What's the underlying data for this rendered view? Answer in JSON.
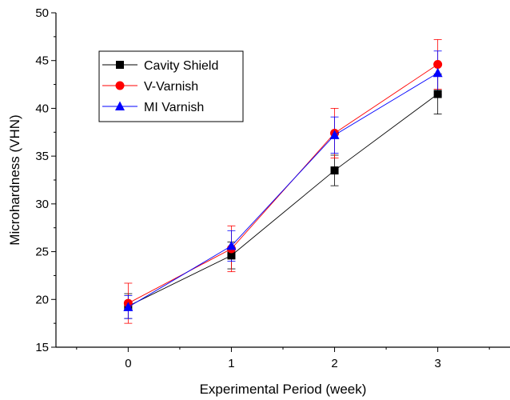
{
  "chart_data": {
    "type": "line",
    "title": "",
    "xlabel": "Experimental Period  (week)",
    "ylabel": "Microhardness (VHN)",
    "x": [
      0,
      1,
      2,
      3
    ],
    "xlim": [
      -0.7,
      3.7
    ],
    "ylim": [
      15,
      50
    ],
    "xticks": [
      "0",
      "1",
      "2",
      "3"
    ],
    "yticks": [
      "15",
      "20",
      "25",
      "30",
      "35",
      "40",
      "45",
      "50"
    ],
    "grid": false,
    "legend_position": "top-left",
    "series": [
      {
        "name": "Cavity Shield",
        "color": "#000000",
        "marker": "square",
        "values": [
          19.3,
          24.6,
          33.5,
          41.5
        ],
        "errors": [
          1.3,
          1.4,
          1.6,
          2.1
        ]
      },
      {
        "name": "V-Varnish",
        "color": "#ff0000",
        "marker": "circle",
        "values": [
          19.6,
          25.3,
          37.4,
          44.6
        ],
        "errors": [
          2.1,
          2.4,
          2.6,
          2.6
        ]
      },
      {
        "name": "MI Varnish",
        "color": "#0000ff",
        "marker": "triangle",
        "values": [
          19.2,
          25.6,
          37.2,
          43.7
        ],
        "errors": [
          1.2,
          1.6,
          1.9,
          2.3
        ]
      }
    ]
  }
}
